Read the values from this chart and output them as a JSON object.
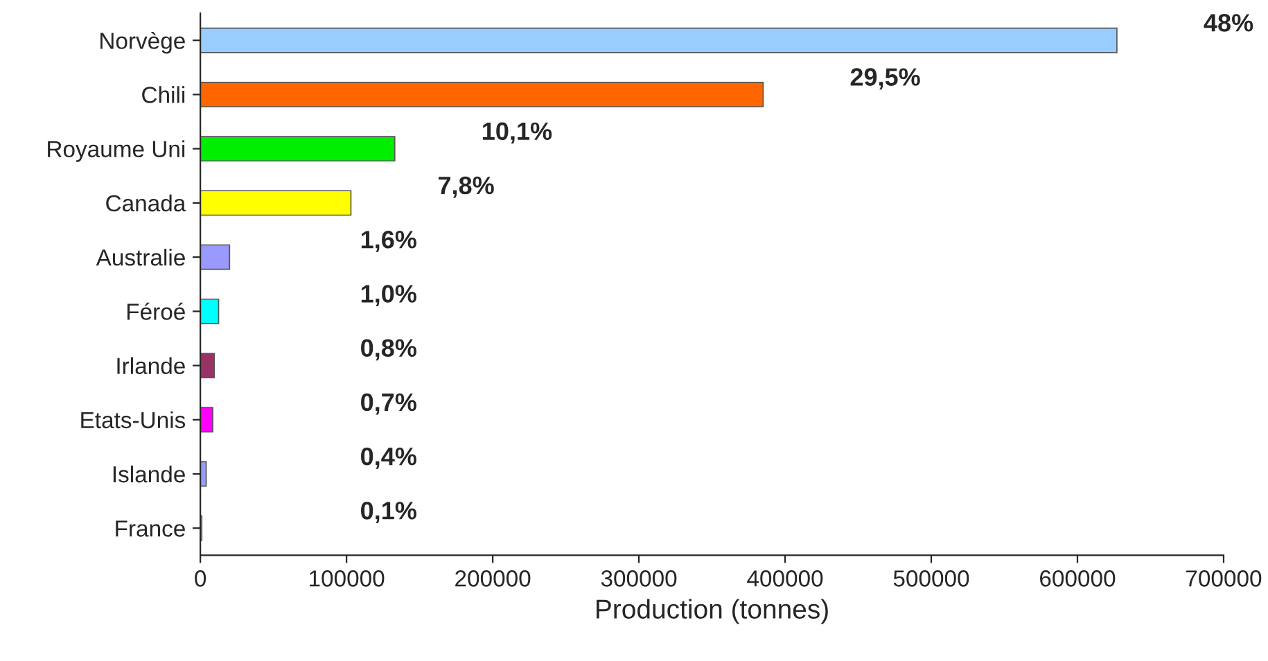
{
  "chart_data": {
    "type": "bar",
    "orientation": "horizontal",
    "xlabel": "Production (tonnes)",
    "categories": [
      "Norvège",
      "Chili",
      "Royaume Uni",
      "Canada",
      "Australie",
      "Féroé",
      "Irlande",
      "Etats-Unis",
      "Islande",
      "France"
    ],
    "values": [
      627000,
      385000,
      133000,
      103000,
      20000,
      12500,
      9500,
      8500,
      4000,
      1000
    ],
    "colors": [
      "#99ccff",
      "#ff6600",
      "#00ee00",
      "#ffff00",
      "#9999ff",
      "#00ffff",
      "#993366",
      "#ff00ff",
      "#9999ff",
      "#cccccc"
    ],
    "annotations": [
      "48%",
      "29,5%",
      "10,1%",
      "7,8%",
      "1,6%",
      "1,0%",
      "0,8%",
      "0,7%",
      "0,4%",
      "0,1%"
    ],
    "xlim": [
      0,
      700000
    ],
    "xticks": [
      0,
      100000,
      200000,
      300000,
      400000,
      500000,
      600000,
      700000
    ],
    "grid": false
  }
}
